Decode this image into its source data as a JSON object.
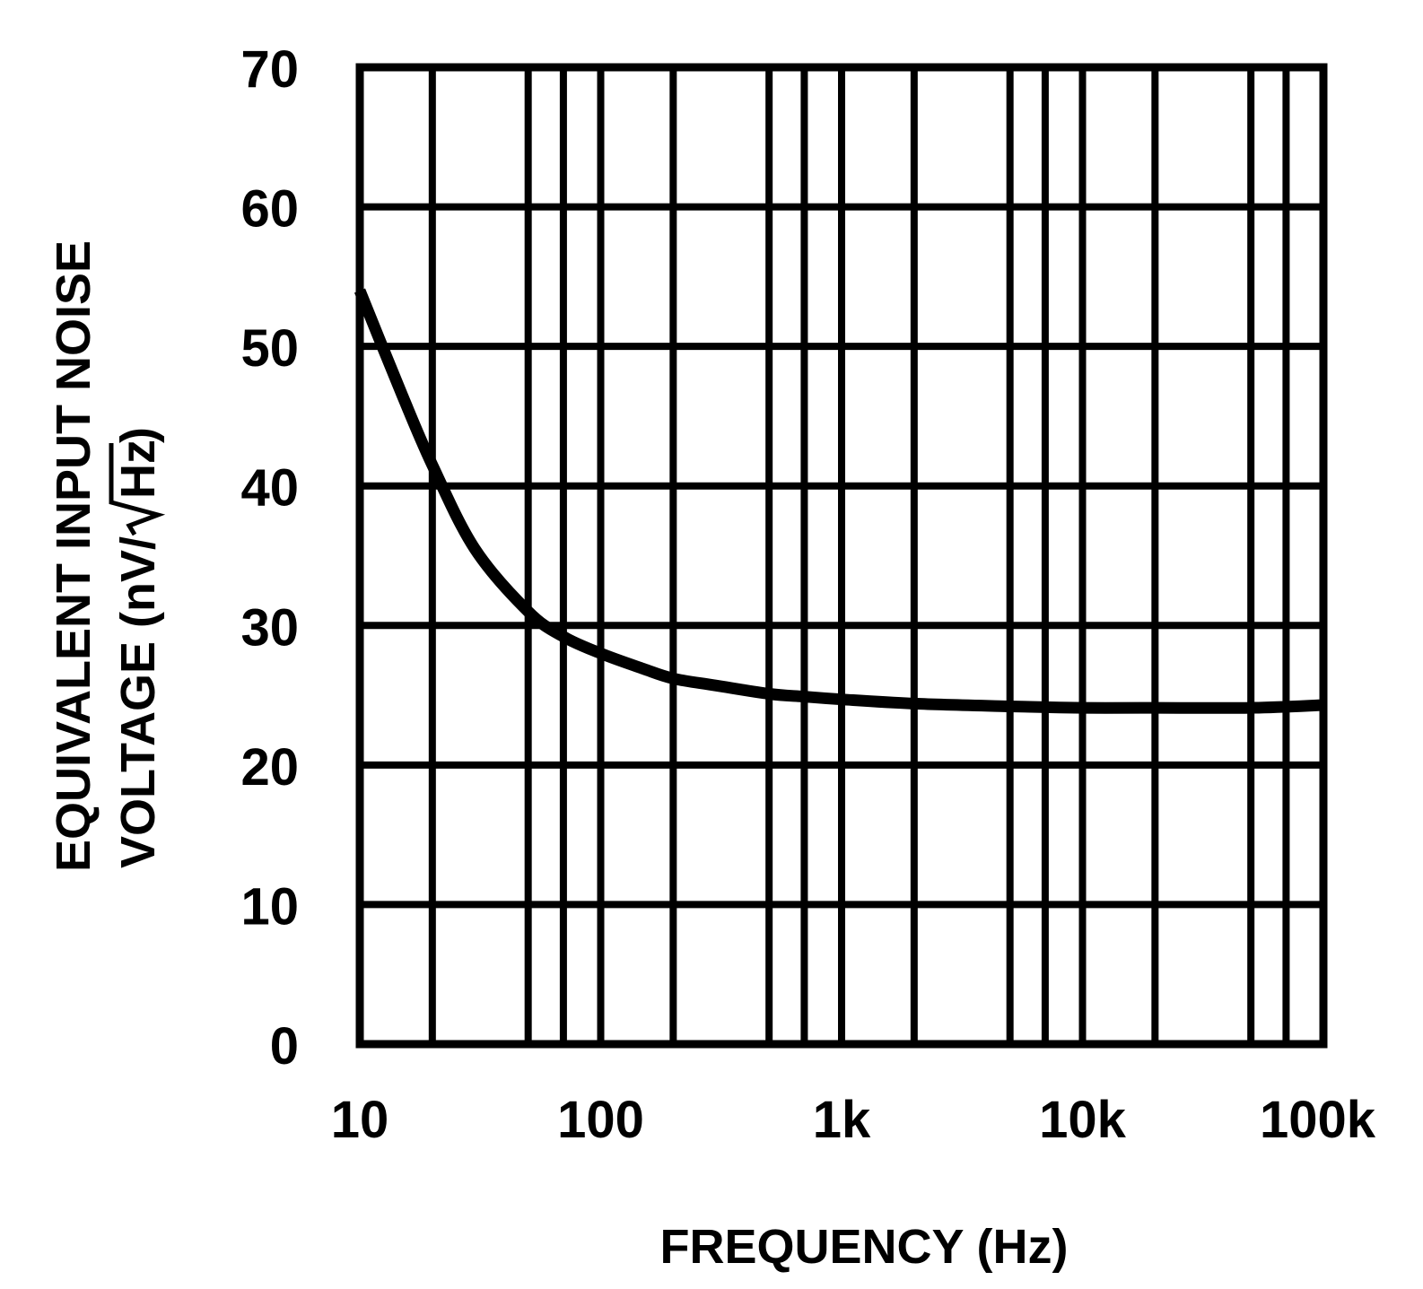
{
  "chart_data": {
    "type": "line",
    "title": "",
    "xlabel": "FREQUENCY (Hz)",
    "ylabel_line1": "EQUIVALENT INPUT NOISE",
    "ylabel_line2_prefix": "VOLTAGE (nV/",
    "ylabel_line2_radicand": "Hz",
    "ylabel_line2_suffix": ")",
    "x_scale": "log",
    "xlim": [
      10,
      100000
    ],
    "ylim": [
      0,
      70
    ],
    "grid": true,
    "x_ticks": [
      10,
      100,
      1000,
      10000,
      100000
    ],
    "x_tick_labels": [
      "10",
      "100",
      "1k",
      "10k",
      "100k"
    ],
    "y_ticks": [
      0,
      10,
      20,
      30,
      40,
      50,
      60,
      70
    ],
    "y_tick_labels": [
      "0",
      "10",
      "20",
      "30",
      "40",
      "50",
      "60",
      "70"
    ],
    "x_minor_gridlines": [
      20,
      50,
      70,
      200,
      500,
      700,
      2000,
      5000,
      7000,
      20000,
      50000,
      70000
    ],
    "series": [
      {
        "name": "Equivalent Input Noise Voltage",
        "x": [
          10,
          15,
          20,
          30,
          50,
          70,
          100,
          150,
          200,
          300,
          500,
          700,
          1000,
          2000,
          5000,
          10000,
          20000,
          50000,
          100000
        ],
        "y": [
          54,
          46.5,
          41.5,
          35.5,
          31,
          29.2,
          28,
          26.9,
          26.2,
          25.7,
          25.1,
          24.9,
          24.7,
          24.4,
          24.2,
          24.1,
          24.1,
          24.1,
          24.3
        ]
      }
    ],
    "colors": {
      "line": "#000000",
      "grid": "#000000",
      "background": "#ffffff"
    }
  }
}
